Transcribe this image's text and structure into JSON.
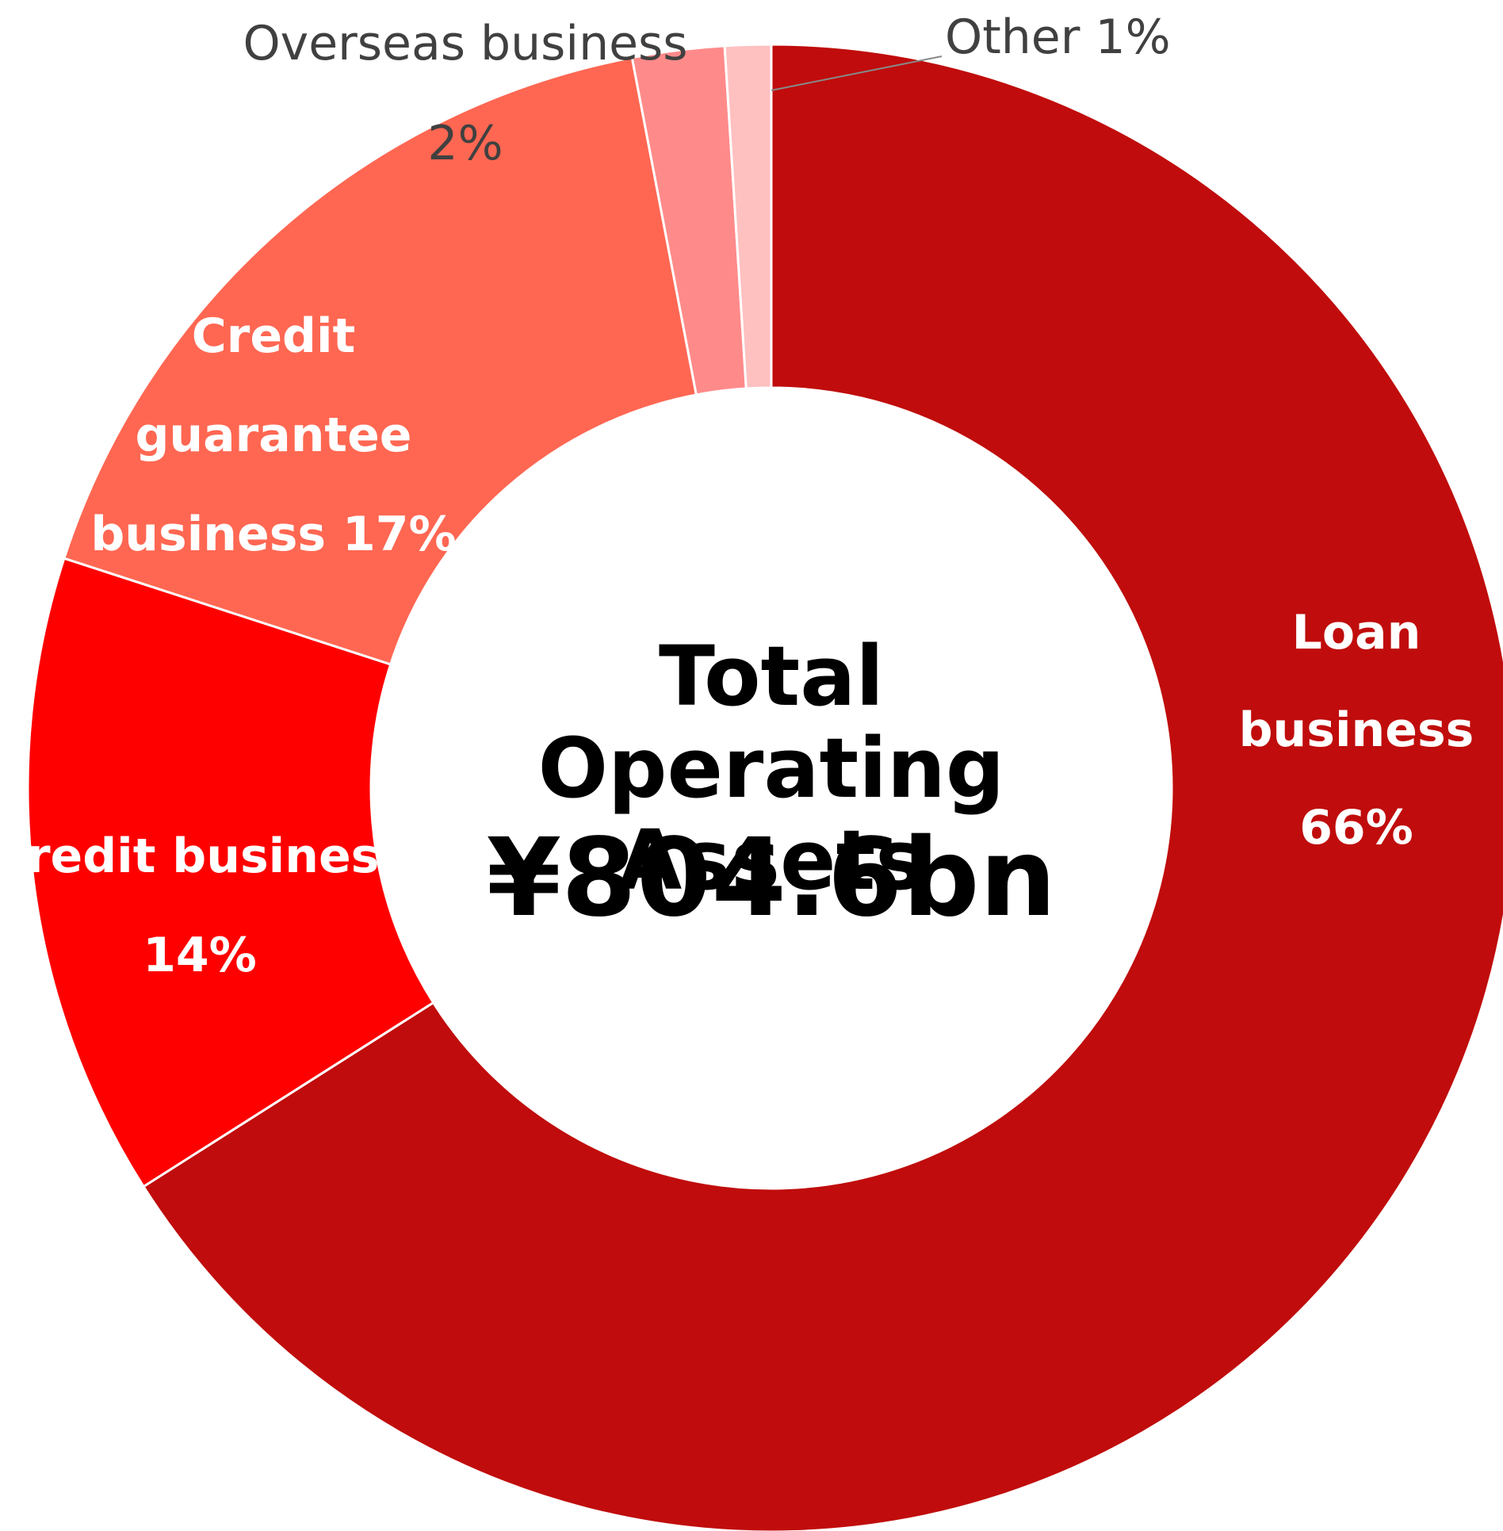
{
  "chart_data": {
    "type": "pie",
    "donut": true,
    "categories": [
      "Loan business",
      "Credit business",
      "Credit guarantee business",
      "Overseas business",
      "Other"
    ],
    "values": [
      66,
      14,
      17,
      2,
      1
    ],
    "value_labels": [
      "66%",
      "14%",
      "17%",
      "2%",
      "1%"
    ],
    "colors": [
      "#c00c0c",
      "#ff0000",
      "#ff6752",
      "#ff8a8a",
      "#ffc0c0"
    ],
    "center_title": "Total Operating Assets",
    "center_value": "¥804.6bn"
  }
}
